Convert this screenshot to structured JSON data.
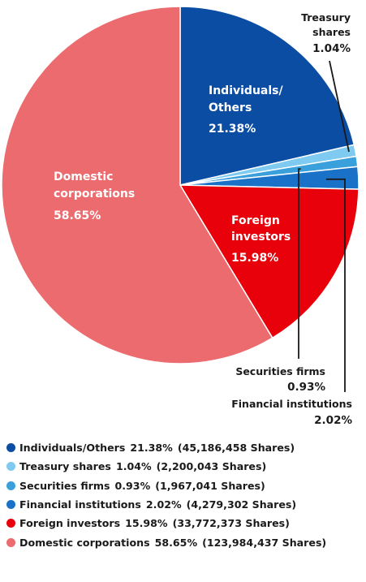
{
  "chart_data": {
    "type": "pie",
    "slices": [
      {
        "label": "Individuals/Others",
        "label_lines": [
          "Individuals/",
          "Others"
        ],
        "value": 21.38,
        "value_text": "21.38%",
        "shares": "(45,186,458 Shares)",
        "color": "#0a4da2",
        "label_style": "inside"
      },
      {
        "label": "Treasury shares",
        "label_lines": [
          "Treasury",
          "shares"
        ],
        "value": 1.04,
        "value_text": "1.04%",
        "shares": "(2,200,043 Shares)",
        "color": "#7fcaf0",
        "label_style": "outside"
      },
      {
        "label": "Securities firms",
        "label_lines": [
          "Securities firms"
        ],
        "value": 0.93,
        "value_text": "0.93%",
        "shares": "(1,967,041 Shares)",
        "color": "#3aa0dc",
        "label_style": "outside"
      },
      {
        "label": "Financial institutions",
        "label_lines": [
          "Financial institutions"
        ],
        "value": 2.02,
        "value_text": "2.02%",
        "shares": "(4,279,302 Shares)",
        "color": "#1a72c8",
        "label_style": "outside"
      },
      {
        "label": "Foreign investors",
        "label_lines": [
          "Foreign",
          "investors"
        ],
        "value": 15.98,
        "value_text": "15.98%",
        "shares": "(33,772,373 Shares)",
        "color": "#e8000b",
        "label_style": "inside"
      },
      {
        "label": "Domestic corporations",
        "label_lines": [
          "Domestic",
          "corporations"
        ],
        "value": 58.65,
        "value_text": "58.65%",
        "shares": "(123,984,437 Shares)",
        "color": "#ec6b6e",
        "label_style": "inside"
      }
    ],
    "start": "12 o'clock",
    "direction": "clockwise",
    "legend_position": "bottom"
  }
}
